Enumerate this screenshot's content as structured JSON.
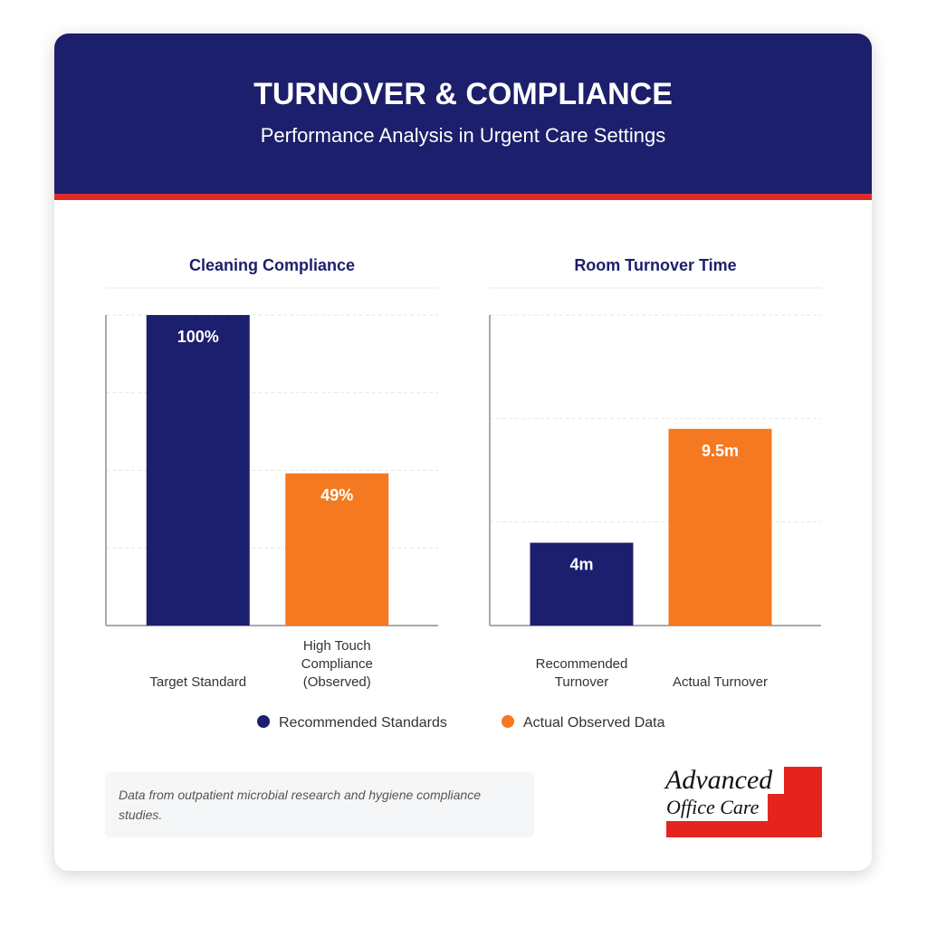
{
  "header": {
    "title": "TURNOVER & COMPLIANCE",
    "subtitle": "Performance Analysis in Urgent Care Settings"
  },
  "chart_data": [
    {
      "type": "bar",
      "title": "Cleaning Compliance",
      "categories": [
        "Target Standard",
        "High Touch Compliance (Observed)"
      ],
      "values": [
        100,
        49
      ],
      "value_labels": [
        "100%",
        "49%"
      ],
      "colors": [
        "#1c1f6e",
        "#f47920"
      ],
      "ylim": [
        0,
        100
      ],
      "yticks": [
        0,
        25,
        50,
        75,
        100
      ],
      "grid": true
    },
    {
      "type": "bar",
      "title": "Room Turnover Time",
      "categories": [
        "Recommended Turnover",
        "Actual Turnover"
      ],
      "values": [
        4,
        9.5
      ],
      "value_labels": [
        "4m",
        "9.5m"
      ],
      "colors": [
        "#1c1f6e",
        "#f47920"
      ],
      "ylim": [
        0,
        15
      ],
      "yticks": [
        0,
        5,
        10,
        15
      ],
      "grid": true
    }
  ],
  "legend": [
    {
      "name": "Recommended Standards",
      "color": "#1c1f6e"
    },
    {
      "name": "Actual Observed Data",
      "color": "#f47920"
    }
  ],
  "note": "Data from outpatient microbial research and hygiene compliance studies.",
  "logo": {
    "line1": "Advanced",
    "line2": "Office Care"
  }
}
